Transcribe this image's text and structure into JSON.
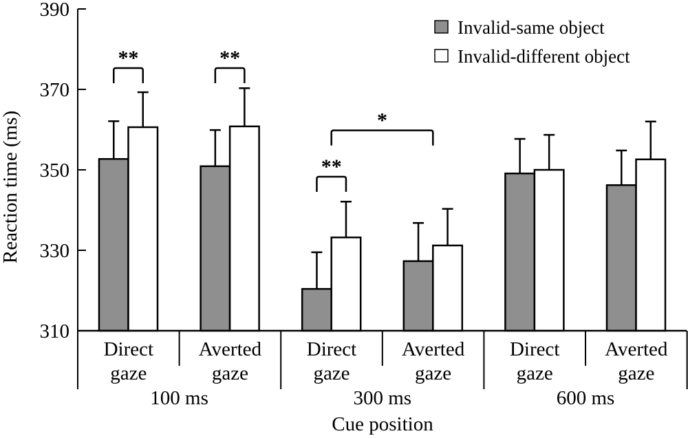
{
  "chart_data": {
    "type": "bar",
    "title": "",
    "xlabel": "Cue position",
    "ylabel": "Reaction time (ms)",
    "ylim": [
      310,
      390
    ],
    "yticks": [
      310,
      330,
      350,
      370,
      390
    ],
    "grid": false,
    "legend_position": "top-right",
    "groups": [
      {
        "label": "100 ms",
        "categories": [
          "Direct gaze",
          "Averted gaze"
        ]
      },
      {
        "label": "300 ms",
        "categories": [
          "Direct gaze",
          "Averted gaze"
        ]
      },
      {
        "label": "600 ms",
        "categories": [
          "Direct gaze",
          "Averted gaze"
        ]
      }
    ],
    "categories": [
      {
        "line1": "Direct",
        "line2": "gaze"
      },
      {
        "line1": "Averted",
        "line2": "gaze"
      },
      {
        "line1": "Direct",
        "line2": "gaze"
      },
      {
        "line1": "Averted",
        "line2": "gaze"
      },
      {
        "line1": "Direct",
        "line2": "gaze"
      },
      {
        "line1": "Averted",
        "line2": "gaze"
      }
    ],
    "series": [
      {
        "name": "Invalid-same object",
        "color": "#8f8f8f",
        "values": [
          352.7,
          350.9,
          320.4,
          327.3,
          349.1,
          346.2
        ],
        "error_upper": [
          362.1,
          359.9,
          329.5,
          336.8,
          357.7,
          354.8
        ]
      },
      {
        "name": "Invalid-different object",
        "color": "#ffffff",
        "values": [
          360.6,
          360.8,
          333.2,
          331.2,
          350.0,
          352.6
        ],
        "error_upper": [
          369.3,
          370.3,
          342.1,
          340.3,
          358.7,
          362.0
        ]
      }
    ],
    "significance": [
      {
        "label": "**",
        "from": {
          "category": 0,
          "series": 0
        },
        "to": {
          "category": 0,
          "series": 1
        },
        "level": 375.3
      },
      {
        "label": "**",
        "from": {
          "category": 1,
          "series": 0
        },
        "to": {
          "category": 1,
          "series": 1
        },
        "level": 375.3
      },
      {
        "label": "**",
        "from": {
          "category": 2,
          "series": 0
        },
        "to": {
          "category": 2,
          "series": 1
        },
        "level": 348.3
      },
      {
        "label": "*",
        "from": {
          "category": 2,
          "series": 0.5
        },
        "to": {
          "category": 3,
          "series": 0.5
        },
        "level": 359.8
      }
    ]
  }
}
